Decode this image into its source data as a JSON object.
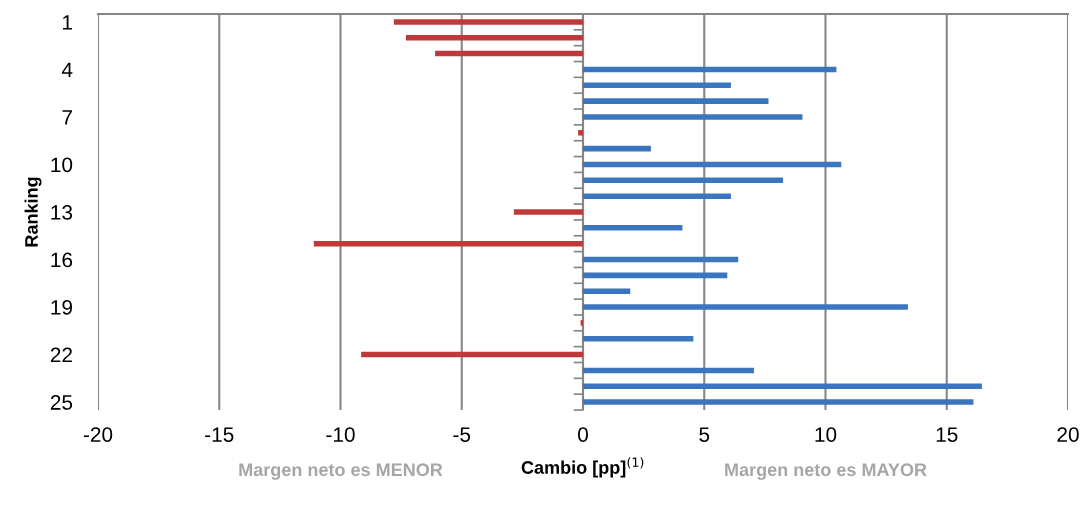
{
  "chart_data": {
    "type": "bar",
    "orientation": "horizontal",
    "ylabel": "Ranking",
    "xlabel": "Cambio [pp]$^{(1)}$",
    "categories": [
      "1",
      null,
      null,
      "4",
      null,
      null,
      "7",
      null,
      null,
      "10",
      null,
      null,
      "13",
      null,
      null,
      "16",
      null,
      null,
      "19",
      null,
      null,
      "22",
      null,
      null,
      "25"
    ],
    "values": [
      -7.8,
      -7.3,
      -6.1,
      10.45,
      6.1,
      7.65,
      9.05,
      -0.2,
      2.8,
      10.65,
      8.25,
      6.1,
      -2.85,
      4.1,
      -11.1,
      6.4,
      5.95,
      1.95,
      13.4,
      -0.1,
      4.55,
      -9.15,
      7.05,
      16.45,
      16.1
    ],
    "colors": [
      "#be3a3a",
      "#be3a3a",
      "#be3a3a",
      "#3b75c0",
      "#3b75c0",
      "#3b75c0",
      "#3b75c0",
      "#be3a3a",
      "#3b75c0",
      "#3b75c0",
      "#3b75c0",
      "#3b75c0",
      "#be3a3a",
      "#3b75c0",
      "#be3a3a",
      "#3b75c0",
      "#3b75c0",
      "#3b75c0",
      "#3b75c0",
      "#be3a3a",
      "#3b75c0",
      "#be3a3a",
      "#3b75c0",
      "#3b75c0",
      "#3b75c0"
    ],
    "xlim": [
      -20,
      20
    ],
    "xticks": [
      -20,
      -15,
      -10,
      -5,
      0,
      5,
      10,
      15,
      20
    ],
    "grid": "x",
    "legend": false,
    "annotations": [
      "Margen neto es MENOR",
      "Margen neto es MAYOR"
    ]
  }
}
